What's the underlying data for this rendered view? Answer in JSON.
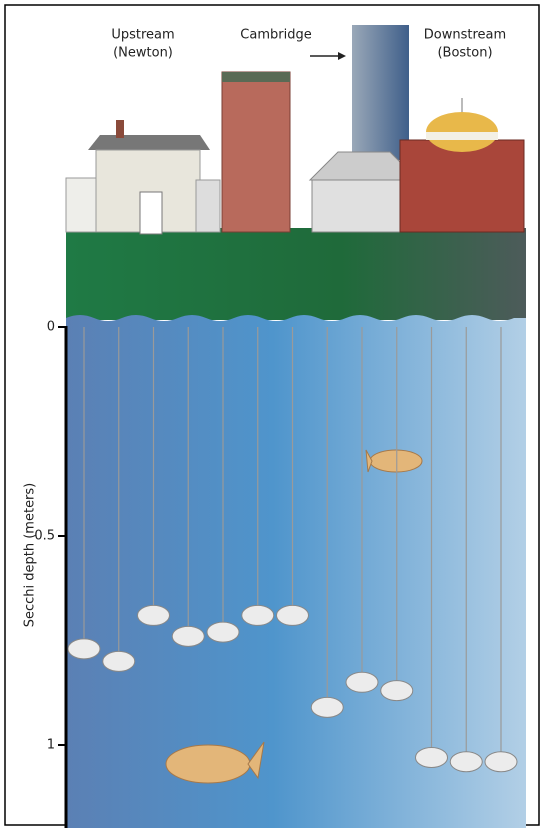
{
  "chart_data": {
    "type": "secchi",
    "annotations": [
      [
        "Upstream",
        "(Newton)"
      ],
      [
        "Cambridge"
      ],
      [
        "Downstream",
        "(Boston)"
      ]
    ],
    "y_label": "Secchi depth (meters)",
    "values": [
      0.77,
      0.8,
      0.69,
      0.74,
      0.73,
      0.69,
      0.69,
      0.91,
      0.85,
      0.87,
      1.03,
      1.04,
      1.04
    ],
    "color": "#ececec",
    "ylim": [
      0,
      1.2
    ],
    "yticks": [
      0,
      0.5,
      1
    ]
  }
}
